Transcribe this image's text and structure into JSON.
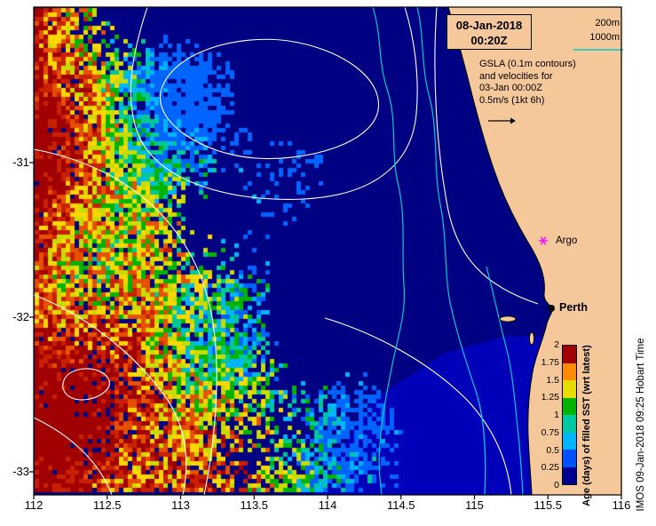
{
  "header": {
    "date": "08-Jan-2018",
    "time": "00:20Z"
  },
  "depth_legend": {
    "label_200m": "200m",
    "label_1000m": "1000m"
  },
  "annotation": {
    "line1": "GSLA (0.1m contours)",
    "line2": "and velocities for",
    "line3": "03-Jan 00:00Z",
    "line4": "0.5m/s (1kt 6h)"
  },
  "markers": {
    "argo": {
      "label": "Argo",
      "color": "#FF00FF"
    },
    "perth": {
      "label": "Perth",
      "color": "#000000"
    }
  },
  "colorbar": {
    "title": "Age (days) of filled SST (wrt latest)",
    "ticks": [
      "0",
      "0.25",
      "0.5",
      "0.75",
      "1",
      "1.25",
      "1.5",
      "1.75",
      "2"
    ],
    "segments": [
      "#000090",
      "#0050FF",
      "#00B4FF",
      "#00C8A0",
      "#00B400",
      "#E6DC00",
      "#FF8C00",
      "#A00000"
    ]
  },
  "credit": "IMOS 09-Jan-2018 09:25 Hobart Time",
  "axes": {
    "x_ticks": [
      "112",
      "112.5",
      "113",
      "113.5",
      "114",
      "114.5",
      "115",
      "115.5",
      "116"
    ],
    "y_ticks": [
      "-31",
      "-32",
      "-33"
    ],
    "x_range": [
      112,
      116
    ],
    "y_range": [
      -33.15,
      -29.99
    ]
  },
  "colors": {
    "ocean": "#000082",
    "ocean_swath": "#0000B8",
    "land": "#F5C89B",
    "contour_white": "#FFFFFF",
    "contour_bathy": "#00CCCC",
    "frame": "#000000"
  },
  "raster": {
    "palette": [
      "#A00000",
      "#C82000",
      "#E65000",
      "#FFD700",
      "#C8DC00",
      "#00B400",
      "#00C896",
      "#00B4FF",
      "#0064FF"
    ]
  }
}
